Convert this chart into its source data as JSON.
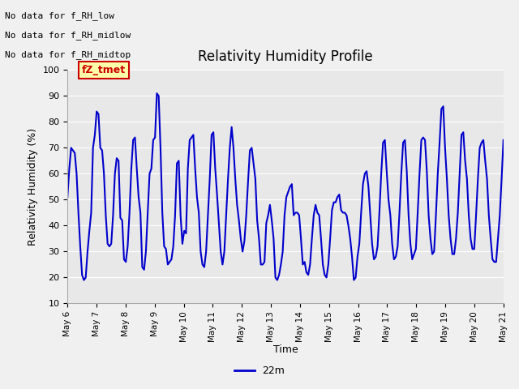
{
  "title": "Relativity Humidity Profile",
  "xlabel": "Time",
  "ylabel": "Relativity Humidity (%)",
  "ylim": [
    10,
    100
  ],
  "yticks": [
    10,
    20,
    30,
    40,
    50,
    60,
    70,
    80,
    90,
    100
  ],
  "legend_label": "22m",
  "line_color": "#0000cc",
  "line_width": 1.5,
  "fig_bg_color": "#f0f0f0",
  "plot_bg_color": "#e8e8e8",
  "grid_color": "#ffffff",
  "annotations_top_left": [
    "No data for f_RH_low",
    "No data for f_RH_midlow",
    "No data for f_RH_midtop"
  ],
  "legend_box_facecolor": "#ffffaa",
  "legend_box_edgecolor": "#cc0000",
  "legend_box_label": "fZ_tmet",
  "legend_box_textcolor": "#cc0000",
  "x_tick_labels": [
    "May 6",
    "May 7",
    "May 8",
    "May 9",
    "May 10",
    "May 11",
    "May 12",
    "May 13",
    "May 14",
    "May 15",
    "May 16",
    "May 17",
    "May 18",
    "May 19",
    "May 20",
    "May 21"
  ],
  "humidity_data": [
    51,
    62,
    70,
    69,
    68,
    60,
    45,
    32,
    21,
    19,
    20,
    30,
    38,
    45,
    70,
    75,
    84,
    83,
    70,
    69,
    60,
    44,
    33,
    32,
    33,
    44,
    60,
    66,
    65,
    43,
    42,
    27,
    26,
    32,
    45,
    62,
    73,
    74,
    62,
    51,
    45,
    24,
    23,
    30,
    45,
    60,
    62,
    73,
    74,
    91,
    90,
    70,
    45,
    32,
    31,
    25,
    26,
    27,
    32,
    44,
    64,
    65,
    44,
    33,
    38,
    37,
    62,
    73,
    74,
    75,
    62,
    51,
    45,
    30,
    25,
    24,
    30,
    44,
    58,
    75,
    76,
    62,
    52,
    41,
    30,
    25,
    30,
    44,
    58,
    70,
    78,
    70,
    58,
    48,
    42,
    35,
    30,
    34,
    44,
    57,
    69,
    70,
    64,
    58,
    42,
    35,
    25,
    25,
    26,
    41,
    44,
    48,
    42,
    35,
    20,
    19,
    21,
    25,
    30,
    44,
    51,
    53,
    55,
    56,
    44,
    45,
    45,
    44,
    35,
    25,
    26,
    22,
    21,
    25,
    35,
    44,
    48,
    45,
    44,
    35,
    25,
    21,
    20,
    25,
    35,
    46,
    49,
    49,
    51,
    52,
    46,
    45,
    45,
    44,
    40,
    35,
    28,
    19,
    20,
    28,
    33,
    45,
    56,
    60,
    61,
    55,
    44,
    33,
    27,
    28,
    32,
    45,
    60,
    72,
    73,
    61,
    50,
    44,
    33,
    27,
    28,
    32,
    45,
    60,
    72,
    73,
    61,
    44,
    33,
    27,
    29,
    31,
    45,
    60,
    73,
    74,
    73,
    61,
    44,
    35,
    29,
    30,
    44,
    60,
    72,
    85,
    86,
    70,
    58,
    44,
    35,
    29,
    29,
    35,
    45,
    60,
    75,
    76,
    65,
    58,
    44,
    35,
    31,
    31,
    44,
    58,
    70,
    72,
    73,
    65,
    58,
    44,
    35,
    27,
    26,
    26,
    35,
    44,
    58,
    73
  ]
}
